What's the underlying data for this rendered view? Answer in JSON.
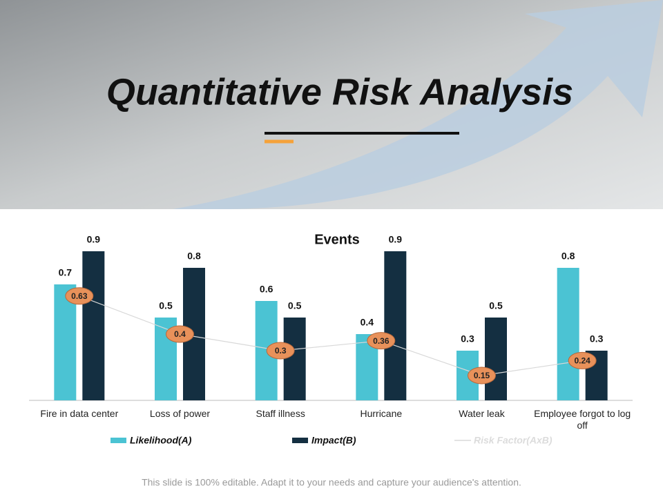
{
  "title": "Quantitative Risk Analysis",
  "footer": "This slide is 100% editable. Adapt it to your needs and capture your audience's attention.",
  "chart_data": {
    "type": "bar",
    "title": "Events",
    "categories": [
      "Fire in data center",
      "Loss of power",
      "Staff illness",
      "Hurricane",
      "Water leak",
      "Employee forgot to log off"
    ],
    "series": [
      {
        "name": "Likelihood(A)",
        "color": "#4bc3d3",
        "values": [
          0.7,
          0.5,
          0.6,
          0.4,
          0.3,
          0.8
        ]
      },
      {
        "name": "Impact(B)",
        "color": "#142f41",
        "values": [
          0.9,
          0.8,
          0.5,
          0.9,
          0.5,
          0.3
        ]
      },
      {
        "name": "Risk Factor(AxB)",
        "type": "line",
        "color": "#d8d8d8",
        "marker_color": "#e8915a",
        "values": [
          0.63,
          0.4,
          0.3,
          0.36,
          0.15,
          0.24
        ]
      }
    ],
    "ylim": [
      0,
      1
    ],
    "legend": "bottom"
  }
}
